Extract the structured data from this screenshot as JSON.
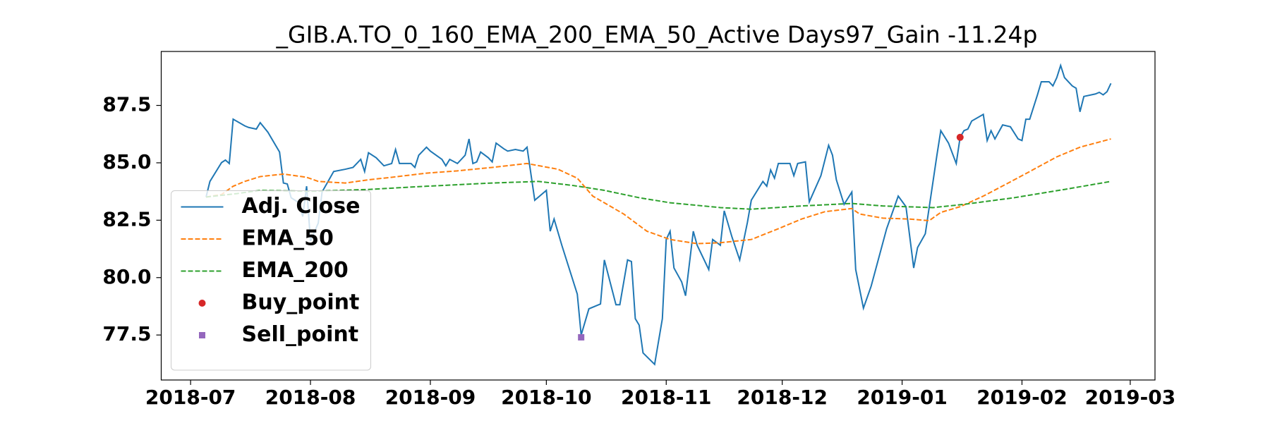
{
  "chart_data": {
    "type": "line",
    "title": "_GIB.A.TO_0_160_EMA_200_EMA_50_Active Days97_Gain -11.24p",
    "xlim": [
      -7.6,
      249.4
    ],
    "xticks": [
      {
        "value": 0,
        "label": "2018-07"
      },
      {
        "value": 31,
        "label": "2018-08"
      },
      {
        "value": 62,
        "label": "2018-09"
      },
      {
        "value": 92,
        "label": "2018-10"
      },
      {
        "value": 123,
        "label": "2018-11"
      },
      {
        "value": 153,
        "label": "2018-12"
      },
      {
        "value": 184,
        "label": "2019-01"
      },
      {
        "value": 215,
        "label": "2019-02"
      },
      {
        "value": 243,
        "label": "2019-03"
      }
    ],
    "ylim": [
      75.54,
      89.85
    ],
    "yticks": [
      77.5,
      {
        "value": 80,
        "label": "80.0"
      },
      82.5,
      {
        "value": 85,
        "label": "85.0"
      },
      87.5
    ],
    "legend": "lower left",
    "series": [
      {
        "name": "Adj. Close",
        "color": "#1f77b4",
        "linestyle": "solid",
        "x": [
          4,
          5,
          8,
          9,
          10,
          11,
          14,
          15,
          17,
          18,
          20,
          23,
          24,
          25,
          26,
          28,
          29,
          30,
          31,
          33,
          34,
          37,
          40,
          42,
          44,
          45,
          46,
          48,
          50,
          52,
          53,
          54,
          57,
          58,
          59,
          61,
          62,
          65,
          66,
          67,
          69,
          71,
          72,
          73,
          74,
          75,
          77,
          78,
          79,
          81,
          82,
          84,
          86,
          87,
          89,
          92,
          93,
          94,
          96,
          100,
          101,
          103,
          106,
          107,
          110,
          111,
          113,
          114,
          115,
          116,
          117,
          120,
          122,
          123,
          124,
          125,
          127,
          128,
          130,
          131,
          134,
          135,
          137,
          138,
          140,
          142,
          144,
          145,
          148,
          149,
          150,
          151,
          152,
          155,
          156,
          157,
          159,
          160,
          163,
          165,
          166,
          167,
          169,
          171,
          172,
          174,
          176,
          180,
          183,
          185,
          187,
          188,
          190,
          193,
          194,
          196,
          198,
          199,
          200,
          201,
          202,
          205,
          206,
          207,
          208,
          210,
          212,
          214,
          215,
          216,
          217,
          219,
          220,
          222,
          223,
          224,
          225,
          226,
          228,
          229,
          230,
          231,
          234,
          235,
          236,
          237,
          238
        ],
        "values": [
          83.51,
          84.19,
          85.01,
          85.12,
          84.97,
          86.9,
          86.61,
          86.54,
          86.47,
          86.75,
          86.33,
          85.47,
          84.12,
          84.08,
          83.48,
          83.26,
          82.66,
          83.98,
          81.59,
          82.37,
          83.73,
          84.62,
          84.72,
          84.8,
          85.15,
          84.62,
          85.44,
          85.22,
          84.87,
          84.97,
          85.58,
          84.97,
          84.97,
          84.8,
          85.33,
          85.68,
          85.51,
          85.15,
          84.87,
          85.15,
          84.97,
          85.33,
          86.04,
          84.97,
          85.04,
          85.47,
          85.22,
          85.04,
          85.86,
          85.61,
          85.51,
          85.58,
          85.51,
          85.68,
          83.37,
          83.8,
          82.02,
          82.55,
          81.41,
          79.28,
          77.5,
          78.64,
          78.85,
          80.77,
          78.82,
          78.82,
          80.77,
          80.7,
          78.21,
          77.93,
          76.72,
          76.22,
          78.21,
          81.66,
          82.02,
          80.42,
          79.81,
          79.21,
          82.02,
          81.41,
          80.35,
          81.66,
          81.41,
          82.91,
          81.77,
          80.77,
          82.41,
          83.37,
          84.19,
          83.98,
          84.69,
          84.33,
          84.97,
          84.97,
          84.44,
          84.97,
          85.04,
          83.3,
          84.44,
          85.76,
          85.33,
          84.26,
          83.19,
          83.73,
          80.35,
          78.67,
          79.63,
          82.13,
          83.55,
          83.09,
          80.42,
          81.31,
          81.91,
          85.33,
          86.4,
          85.86,
          84.97,
          86.11,
          86.4,
          86.47,
          86.82,
          87.11,
          85.97,
          86.4,
          86.04,
          86.65,
          86.57,
          86.04,
          85.97,
          86.9,
          86.9,
          87.96,
          88.53,
          88.53,
          88.35,
          88.71,
          89.24,
          88.71,
          88.35,
          88.25,
          87.22,
          87.89,
          88.0,
          88.07,
          87.96,
          88.1,
          88.46
        ]
      },
      {
        "name": "EMA_50",
        "color": "#ff7f0e",
        "linestyle": "dashed",
        "x": [
          4,
          8,
          11,
          14,
          18,
          24,
          30,
          33,
          40,
          46,
          52,
          61,
          69,
          78,
          87,
          95,
          100,
          104,
          112,
          118,
          124,
          131,
          137,
          145,
          152,
          158,
          164,
          171,
          173,
          179,
          186,
          191,
          194,
          199,
          205,
          211,
          217,
          224,
          230,
          238
        ],
        "values": [
          83.51,
          83.62,
          83.98,
          84.19,
          84.4,
          84.51,
          84.37,
          84.19,
          84.12,
          84.26,
          84.37,
          84.55,
          84.65,
          84.8,
          84.97,
          84.72,
          84.33,
          83.55,
          82.77,
          82.02,
          81.66,
          81.48,
          81.52,
          81.66,
          82.13,
          82.55,
          82.87,
          83.01,
          82.77,
          82.59,
          82.55,
          82.48,
          82.84,
          83.09,
          83.55,
          84.08,
          84.62,
          85.26,
          85.68,
          86.04
        ]
      },
      {
        "name": "EMA_200",
        "color": "#2ca02c",
        "linestyle": "dashed",
        "x": [
          4,
          12,
          18,
          31,
          46,
          61,
          78,
          90,
          99,
          107,
          116,
          124,
          137,
          145,
          158,
          171,
          179,
          192,
          200,
          213,
          226,
          238
        ],
        "values": [
          83.51,
          83.66,
          83.8,
          83.76,
          83.84,
          83.98,
          84.12,
          84.19,
          84.01,
          83.8,
          83.48,
          83.26,
          83.05,
          82.98,
          83.12,
          83.23,
          83.12,
          83.05,
          83.19,
          83.48,
          83.84,
          84.19
        ]
      },
      {
        "name": "Buy_point",
        "color": "#d62728",
        "marker": "circle",
        "x": [
          199
        ],
        "values": [
          86.11
        ]
      },
      {
        "name": "Sell_point",
        "color": "#9467bd",
        "marker": "square",
        "x": [
          101
        ],
        "values": [
          77.4
        ]
      }
    ]
  }
}
